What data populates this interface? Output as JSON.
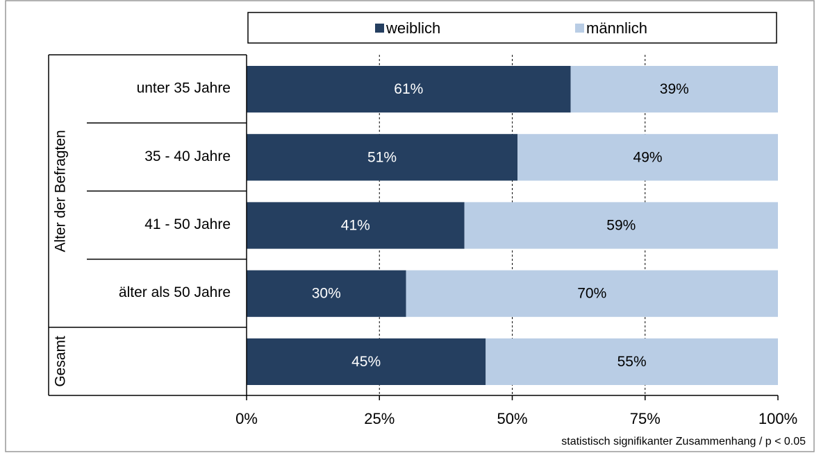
{
  "chart_data": {
    "type": "stacked-bar-horizontal",
    "categories": [
      "unter 35 Jahre",
      "35 - 40 Jahre",
      "41 - 50 Jahre",
      "älter als 50 Jahre",
      null
    ],
    "groups": [
      "Alter der Befragten",
      "Gesamt"
    ],
    "series": [
      {
        "name": "weiblich",
        "color": "#253f60",
        "values": [
          61,
          51,
          41,
          30,
          45
        ],
        "value_labels": [
          "61%",
          "51%",
          "41%",
          "30%",
          "45%"
        ]
      },
      {
        "name": "männlich",
        "color": "#b9cde5",
        "values": [
          39,
          49,
          59,
          70,
          55
        ],
        "value_labels": [
          "39%",
          "49%",
          "59%",
          "70%",
          "55%"
        ]
      }
    ],
    "xlim": [
      0,
      100
    ],
    "xticks": [
      {
        "value": 0,
        "label": "0%"
      },
      {
        "value": 25,
        "label": "25%"
      },
      {
        "value": 50,
        "label": "50%"
      },
      {
        "value": 75,
        "label": "75%"
      },
      {
        "value": 100,
        "label": "100%"
      }
    ],
    "grid": true,
    "note": "statistisch signifikanter Zusammenhang / p < 0.05"
  }
}
